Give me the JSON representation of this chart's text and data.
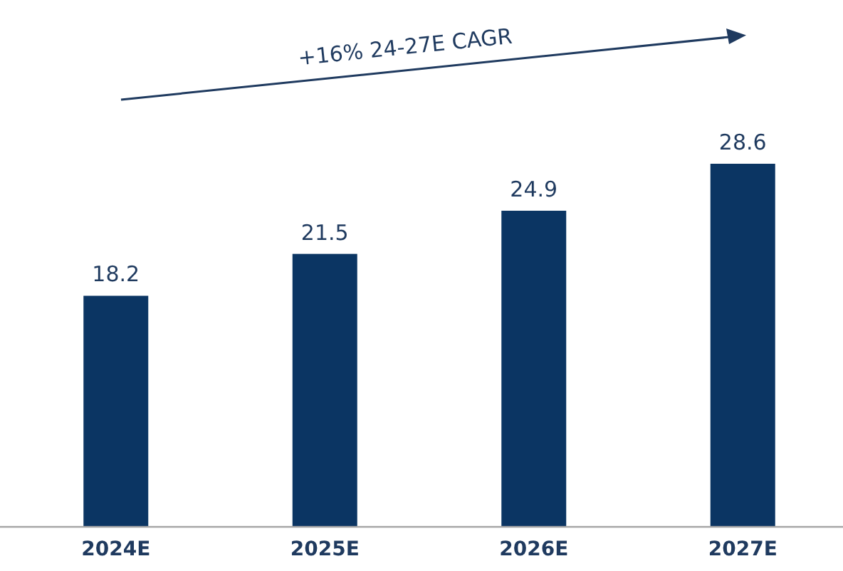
{
  "chart_data": {
    "type": "bar",
    "categories": [
      "2024E",
      "2025E",
      "2026E",
      "2027E"
    ],
    "values": [
      18.2,
      21.5,
      24.9,
      28.6
    ],
    "color": "#0b3563",
    "data_labels": true,
    "annotations": [
      "+16% 24-27E CAGR"
    ]
  }
}
